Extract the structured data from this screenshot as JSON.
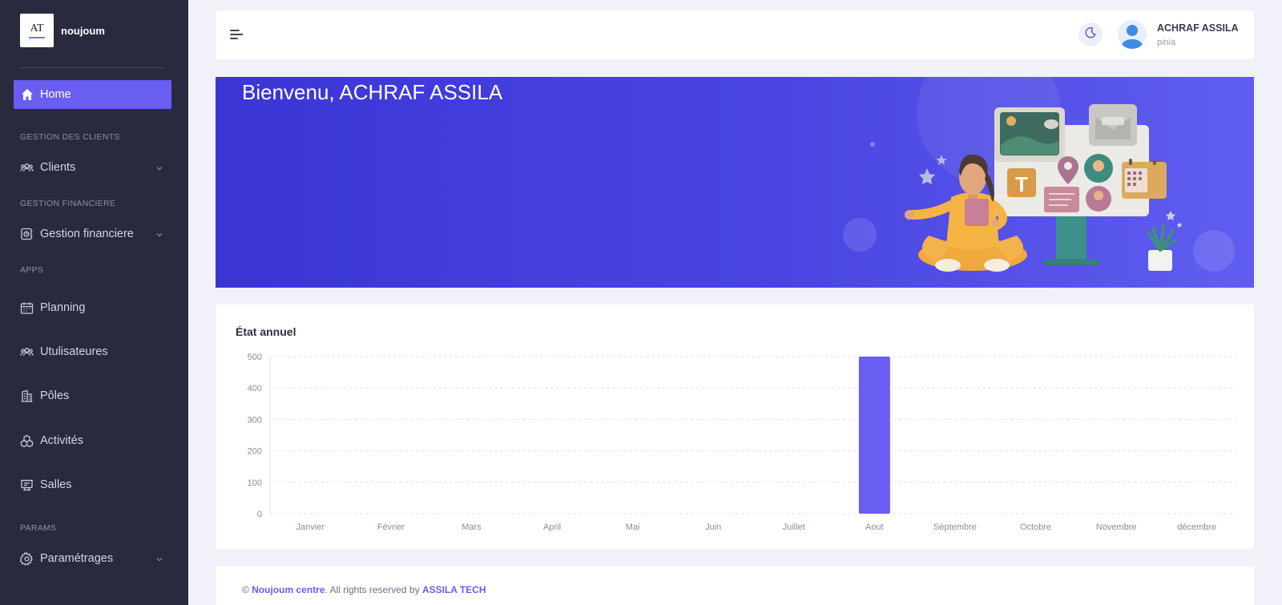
{
  "brand": {
    "logo_text": "AT",
    "name": "noujoum"
  },
  "sidebar": {
    "home": "Home",
    "sections": {
      "clients": "GESTION DES CLIENTS",
      "finance": "GESTION FINANCIERE",
      "apps": "APPS",
      "params": "PARAMS"
    },
    "items": {
      "clients": "Clients",
      "finance": "Gestion financiere",
      "planning": "Planning",
      "users": "Utulisateures",
      "poles": "Pôles",
      "activites": "Activités",
      "salles": "Salles",
      "parametrages": "Paramétrages"
    }
  },
  "header": {
    "user_name": "ACHRAF ASSILA",
    "user_role": "pinia"
  },
  "hero": {
    "title": "Bienvenu, ACHRAF ASSILA"
  },
  "card": {
    "title": "État annuel"
  },
  "chart_data": {
    "type": "bar",
    "categories": [
      "Janvier",
      "Février",
      "Mars",
      "April",
      "Mai",
      "Juin",
      "Juillet",
      "Aout",
      "Séptembre",
      "Octobre",
      "Novembre",
      "décembre"
    ],
    "values": [
      0,
      0,
      0,
      0,
      0,
      0,
      0,
      500,
      0,
      0,
      0,
      0
    ],
    "yticks": [
      0,
      100,
      200,
      300,
      400,
      500
    ],
    "ylim": [
      0,
      500
    ],
    "grid": true,
    "color": "#6a5df2"
  },
  "footer": {
    "copyright": "©",
    "company": "Noujoum centre",
    "rights": ". All rights reserved by",
    "author": "ASSILA TECH"
  },
  "colors": {
    "accent": "#6a5df2",
    "sidebar_bg": "#2a2a3e",
    "page_bg": "#f1f1f9"
  }
}
